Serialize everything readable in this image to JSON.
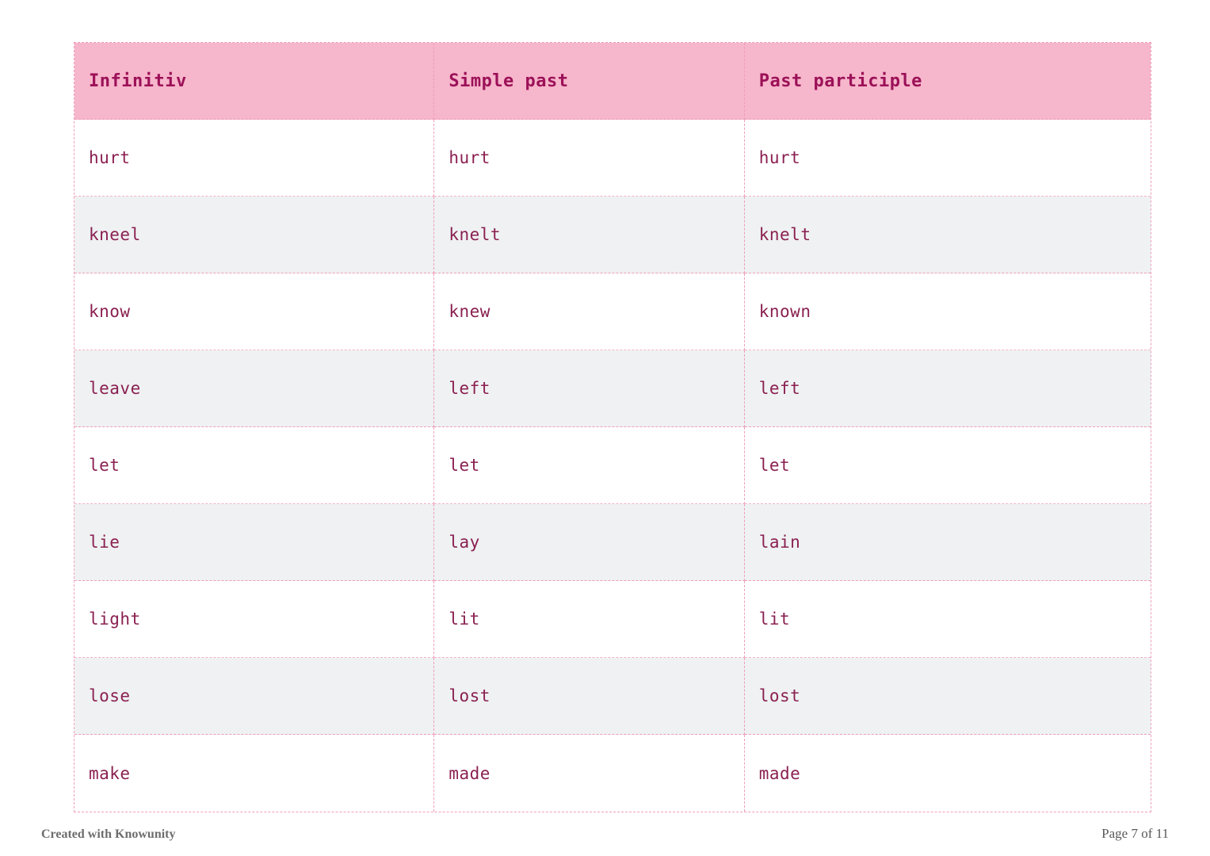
{
  "table": {
    "headers": [
      "Infinitiv",
      "Simple past",
      "Past participle"
    ],
    "rows": [
      {
        "cells": [
          "hurt",
          "hurt",
          "hurt"
        ]
      },
      {
        "cells": [
          "kneel",
          "knelt",
          "knelt"
        ]
      },
      {
        "cells": [
          "know",
          "knew",
          "known"
        ]
      },
      {
        "cells": [
          "leave",
          "left",
          "left"
        ]
      },
      {
        "cells": [
          "let",
          "let",
          "let"
        ]
      },
      {
        "cells": [
          "lie",
          "lay",
          "lain"
        ]
      },
      {
        "cells": [
          "light",
          "lit",
          "lit"
        ]
      },
      {
        "cells": [
          "lose",
          "lost",
          "lost"
        ]
      },
      {
        "cells": [
          "make",
          "made",
          "made"
        ]
      }
    ]
  },
  "footer": {
    "left": "Created with Knowunity",
    "right": "Page 7 of 11"
  },
  "colors": {
    "header_bg": "#f6b6cb",
    "header_text": "#9c1158",
    "cell_text": "#8a2051",
    "border_dashed": "#ee9eb9",
    "alt_row_bg": "#eff1f2",
    "footer_text": "#6d6d6d"
  }
}
